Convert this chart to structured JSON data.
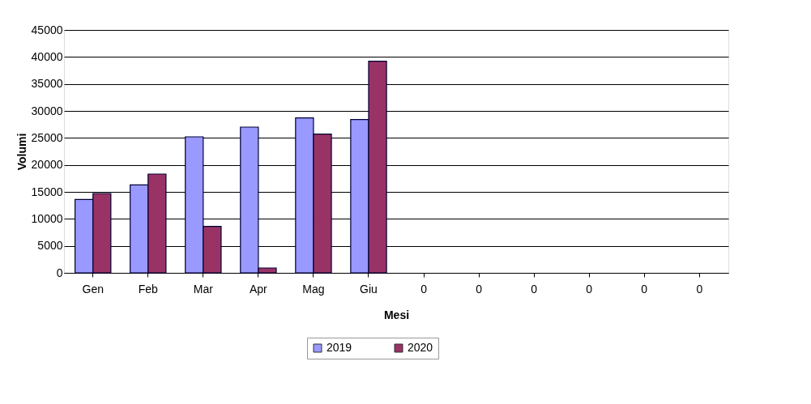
{
  "chart_data": {
    "type": "bar",
    "xlabel": "Mesi",
    "ylabel": "Volumi",
    "categories": [
      "Gen",
      "Feb",
      "Mar",
      "Apr",
      "Mag",
      "Giu",
      "0",
      "0",
      "0",
      "0",
      "0",
      "0"
    ],
    "series": [
      {
        "name": "2019",
        "color": "#9999ff",
        "values": [
          13600,
          16300,
          25200,
          27000,
          28700,
          28400,
          null,
          null,
          null,
          null,
          null,
          null
        ]
      },
      {
        "name": "2020",
        "color": "#993366",
        "values": [
          14700,
          18300,
          8600,
          900,
          25700,
          39200,
          null,
          null,
          null,
          null,
          null,
          null
        ]
      }
    ],
    "ylim": [
      0,
      45000
    ],
    "yticks": [
      0,
      5000,
      10000,
      15000,
      20000,
      25000,
      30000,
      35000,
      40000,
      45000
    ],
    "grid": "y",
    "legend": "bottom"
  }
}
